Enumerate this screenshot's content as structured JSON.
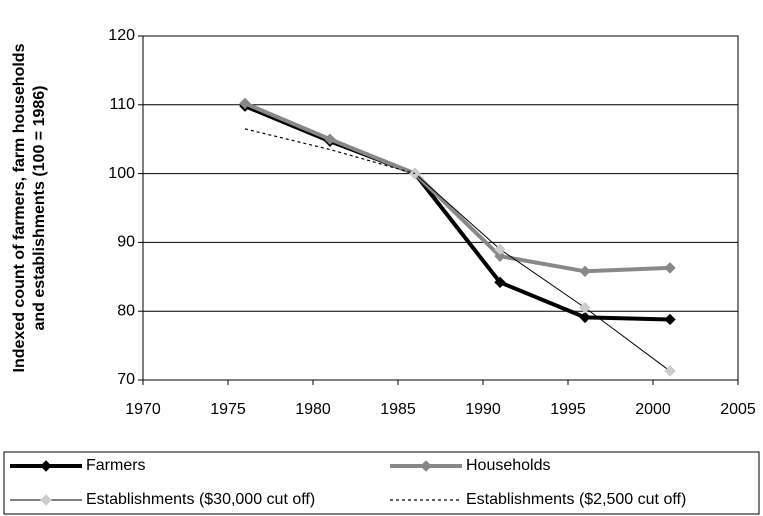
{
  "chart_data": {
    "type": "line",
    "ylabel": [
      "Indexed count of farmers, farm households",
      "and establishments (100 = 1986)"
    ],
    "x": [
      1976,
      1981,
      1986,
      1991,
      1996,
      2001
    ],
    "series": [
      {
        "name": "Farmers",
        "color": "#000000",
        "marker_color": "#000000",
        "width": 4,
        "dash": false,
        "marker": true,
        "values": [
          109.8,
          104.7,
          100,
          84.2,
          79.1,
          78.8
        ]
      },
      {
        "name": "Households",
        "color": "#888888",
        "marker_color": "#888888",
        "width": 4,
        "dash": false,
        "marker": true,
        "values": [
          110.2,
          105,
          100,
          88,
          85.8,
          86.3
        ]
      },
      {
        "name": "Establishments ($30,000 cut off)",
        "color": "#000000",
        "marker_color": "#cccccc",
        "width": 1,
        "dash": false,
        "marker": true,
        "values": [
          null,
          null,
          100,
          89,
          80.5,
          71.3
        ]
      },
      {
        "name": "Establishments ($2,500 cut off)",
        "color": "#000000",
        "marker_color": "#000000",
        "width": 1.2,
        "dash": true,
        "marker": false,
        "values": [
          106.5,
          103.5,
          100,
          null,
          null,
          null
        ]
      }
    ],
    "xlim": [
      1970,
      2005
    ],
    "xticks": [
      1970,
      1975,
      1980,
      1985,
      1990,
      1995,
      2000,
      2005
    ],
    "ylim": [
      70,
      120
    ],
    "yticks": [
      70,
      80,
      90,
      100,
      110,
      120
    ],
    "grid": true,
    "legend": "bottom"
  }
}
